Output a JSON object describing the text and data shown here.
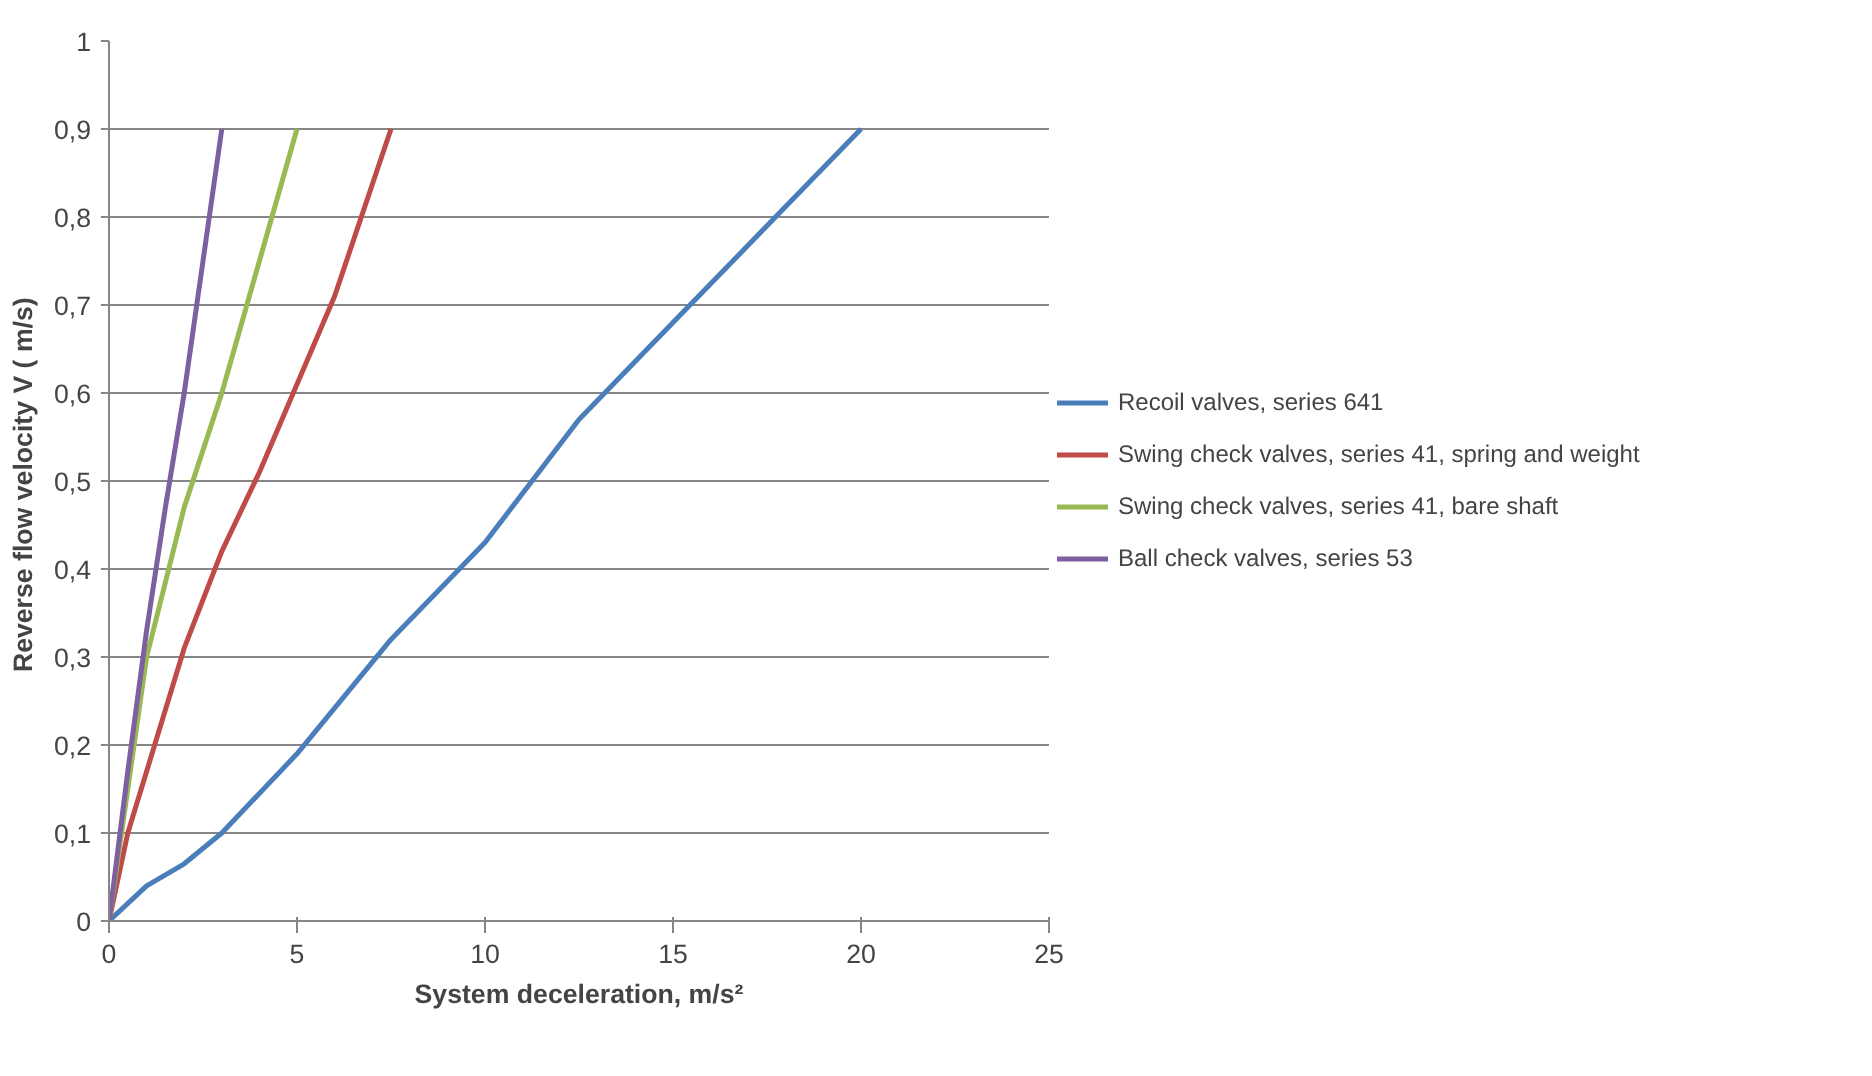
{
  "chart_data": {
    "type": "line",
    "xlabel": "System deceleration, m/s²",
    "ylabel": "Reverse flow velocity  V ( m/s)",
    "xlim": [
      0,
      25
    ],
    "xticks": [
      0,
      5,
      10,
      15,
      20,
      25
    ],
    "ylim": [
      0,
      1
    ],
    "yticks": [
      0,
      {
        "value": 0.1,
        "label": "0,1"
      },
      {
        "value": 0.2,
        "label": "0,2"
      },
      {
        "value": 0.3,
        "label": "0,3"
      },
      {
        "value": 0.4,
        "label": "0,4"
      },
      {
        "value": 0.5,
        "label": "0,5"
      },
      {
        "value": 0.6,
        "label": "0,6"
      },
      {
        "value": 0.7,
        "label": "0,7"
      },
      {
        "value": 0.8,
        "label": "0,8"
      },
      {
        "value": 0.9,
        "label": "0,9"
      },
      1
    ],
    "grid": "y",
    "legend": "right",
    "marker": "none",
    "line_style": "solid",
    "series": [
      {
        "name": "Recoil valves, series 641",
        "color": "#4a7ebb",
        "x": [
          0,
          1,
          2,
          3,
          5,
          7.5,
          10,
          12.5,
          15,
          17.5,
          20
        ],
        "values": [
          0,
          0.04,
          0.065,
          0.1,
          0.19,
          0.32,
          0.43,
          0.57,
          0.68,
          0.79,
          0.9
        ]
      },
      {
        "name": "Swing check valves, series 41, spring and weight",
        "color": "#be4b48",
        "x": [
          0,
          0.5,
          1,
          2,
          3,
          4,
          5,
          6,
          7.5
        ],
        "values": [
          0,
          0.1,
          0.17,
          0.31,
          0.42,
          0.51,
          0.61,
          0.71,
          0.9
        ]
      },
      {
        "name": "Swing check valves, series 41, bare shaft",
        "color": "#98b954",
        "x": [
          0,
          0.5,
          1,
          2,
          3,
          4,
          5
        ],
        "values": [
          0,
          0.15,
          0.3,
          0.47,
          0.6,
          0.75,
          0.9
        ]
      },
      {
        "name": "Ball check valves, series 53",
        "color": "#7d60a0",
        "x": [
          0,
          0.5,
          1,
          1.5,
          2,
          2.5,
          3
        ],
        "values": [
          0,
          0.17,
          0.33,
          0.47,
          0.6,
          0.75,
          0.9
        ]
      }
    ]
  }
}
